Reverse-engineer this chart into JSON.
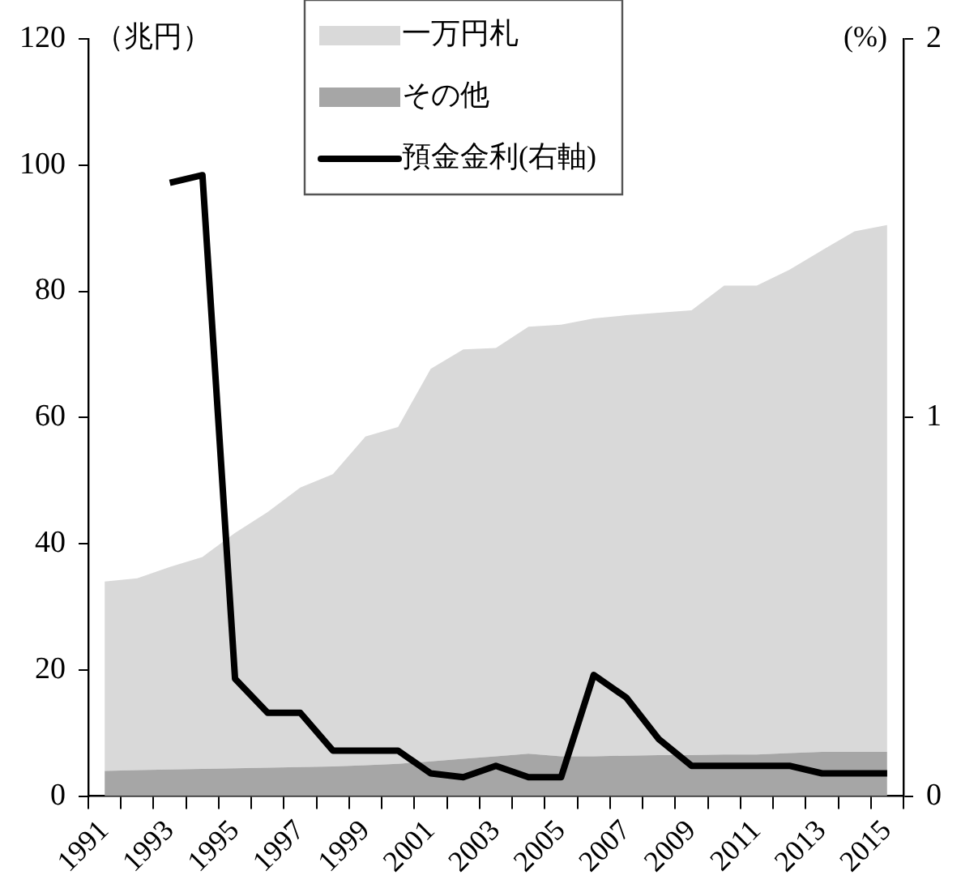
{
  "chart_data": {
    "type": "area",
    "stacked": true,
    "ylabel": "（兆円）",
    "y2label": "(%)",
    "categories": [
      "1991",
      null,
      "1993",
      null,
      "1995",
      null,
      "1997",
      null,
      "1999",
      null,
      "2001",
      null,
      "2003",
      null,
      "2005",
      null,
      "2007",
      null,
      "2009",
      null,
      "2011",
      null,
      "2013",
      null,
      "2015"
    ],
    "series": [
      {
        "name": "その他",
        "color": "#a6a6a6",
        "values": [
          4.0,
          4.1,
          4.2,
          4.3,
          4.4,
          4.5,
          4.6,
          4.7,
          4.9,
          5.1,
          5.5,
          5.9,
          6.3,
          6.7,
          6.3,
          6.3,
          6.4,
          6.5,
          6.5,
          6.6,
          6.6,
          6.8,
          7.0,
          7.0,
          7.0
        ]
      },
      {
        "name": "一万円札",
        "color": "#d9d9d9",
        "values": [
          30.0,
          30.4,
          32.1,
          33.6,
          37.3,
          40.5,
          44.3,
          46.3,
          52.1,
          53.4,
          62.2,
          64.9,
          64.7,
          67.7,
          68.4,
          69.4,
          69.8,
          70.1,
          70.5,
          74.3,
          74.3,
          76.6,
          79.5,
          82.5,
          83.5
        ]
      },
      {
        "name": "預金金利(右軸)",
        "type": "line",
        "axis": "y2",
        "color": "#000000",
        "values": [
          null,
          null,
          1.62,
          1.64,
          0.31,
          0.22,
          0.22,
          0.12,
          0.12,
          0.12,
          0.06,
          0.05,
          0.08,
          0.05,
          0.05,
          0.32,
          0.26,
          0.15,
          0.08,
          0.08,
          0.08,
          0.08,
          0.06,
          0.06,
          0.06
        ]
      }
    ],
    "ylim": [
      0,
      120
    ],
    "yticks": [
      0,
      20,
      40,
      60,
      80,
      100,
      120
    ],
    "y2lim": [
      0,
      2
    ],
    "y2ticks": [
      0,
      1,
      2
    ],
    "legend": "top",
    "grid": false,
    "marker": "none",
    "line_style": "solid"
  }
}
